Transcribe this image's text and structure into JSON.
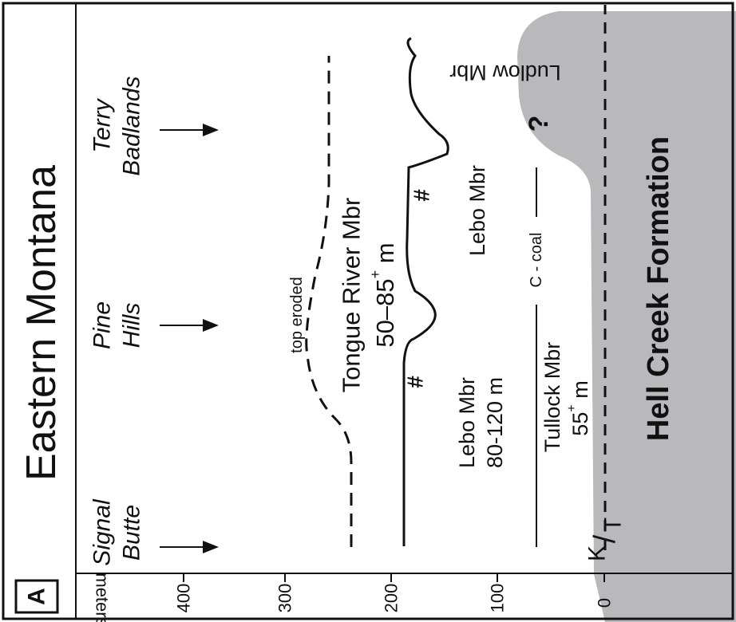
{
  "panel_letter": "A",
  "title": "Eastern Montana",
  "axis": {
    "unit_label": "meters",
    "ticks": [
      "400",
      "300",
      "200",
      "100",
      "0"
    ]
  },
  "localities": [
    {
      "line1": "Signal",
      "line2": "Butte"
    },
    {
      "line1": "Pine",
      "line2": "Hills"
    },
    {
      "line1": "Terry",
      "line2": "Badlands"
    }
  ],
  "labels": {
    "top_eroded": "top eroded",
    "tongue_river": "Tongue River Mbr",
    "tongue_river_thickness_prefix": "50–85",
    "tongue_river_thickness_sup": "+",
    "tongue_river_thickness_suffix": " m",
    "lebo_left_name": "Lebo Mbr",
    "lebo_left_thickness": "80-120 m",
    "lebo_right": "Lebo Mbr",
    "hash_symbol": "#",
    "c_coal": "C - coal",
    "tullock_name": "Tullock Mbr",
    "tullock_thickness_prefix": "55",
    "tullock_thickness_sup": "+",
    "tullock_thickness_suffix": " m",
    "ludlow": "Ludlow Mbr",
    "question": "?",
    "hell_creek": "Hell Creek Formation",
    "kt_k": "K",
    "kt_t": "T"
  },
  "colors": {
    "hell_creek_fill": "#b9b9bc",
    "ink": "#111111"
  }
}
